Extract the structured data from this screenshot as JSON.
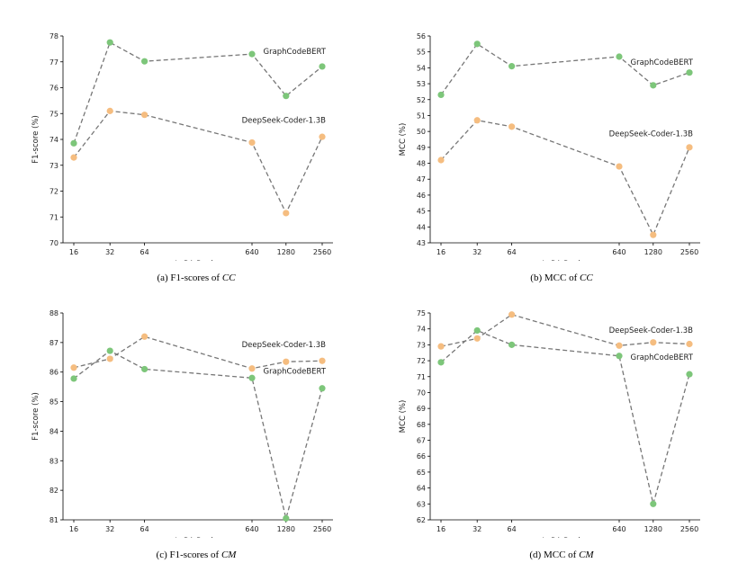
{
  "chart_data": [
    {
      "type": "line",
      "id": "a",
      "caption_prefix": "(a) F1-scores of ",
      "caption_em": "CC",
      "xlabel_prefix": "LoRA Rank ",
      "xlabel_em": "r",
      "ylabel": "F1-score (%)",
      "categories": [
        "16",
        "32",
        "64",
        "640",
        "1280",
        "2560"
      ],
      "ylim": [
        70,
        78
      ],
      "yticks": [
        "70",
        "71",
        "72",
        "73",
        "74",
        "75",
        "76",
        "77",
        "78"
      ],
      "series": [
        {
          "name": "GraphCodeBERT",
          "color": "#7dc67a",
          "values": [
            73.85,
            77.75,
            77.02,
            77.3,
            75.68,
            76.82
          ]
        },
        {
          "name": "DeepSeek-Coder-1.3B",
          "color": "#f5bd80",
          "values": [
            73.3,
            75.1,
            74.95,
            73.88,
            71.15,
            74.1
          ]
        }
      ],
      "annotations": [
        {
          "series": "GraphCodeBERT",
          "anchor_x": 5,
          "anchor_y": 77.3
        },
        {
          "series": "DeepSeek-Coder-1.3B",
          "anchor_x": 5,
          "anchor_y": 74.65
        }
      ]
    },
    {
      "type": "line",
      "id": "b",
      "caption_prefix": "(b) MCC of ",
      "caption_em": "CC",
      "xlabel_prefix": "LoRA Rank ",
      "xlabel_em": "r",
      "ylabel": "MCC (%)",
      "categories": [
        "16",
        "32",
        "64",
        "640",
        "1280",
        "2560"
      ],
      "ylim": [
        43,
        56
      ],
      "yticks": [
        "43",
        "44",
        "45",
        "46",
        "47",
        "48",
        "49",
        "50",
        "51",
        "52",
        "53",
        "54",
        "55",
        "56"
      ],
      "series": [
        {
          "name": "GraphCodeBERT",
          "color": "#7dc67a",
          "values": [
            52.3,
            55.5,
            54.1,
            54.7,
            52.9,
            53.7
          ]
        },
        {
          "name": "DeepSeek-Coder-1.3B",
          "color": "#f5bd80",
          "values": [
            48.2,
            50.7,
            50.3,
            47.8,
            43.5,
            49.0
          ]
        }
      ],
      "annotations": [
        {
          "series": "GraphCodeBERT",
          "anchor_x": 5,
          "anchor_y": 54.2
        },
        {
          "series": "DeepSeek-Coder-1.3B",
          "anchor_x": 5,
          "anchor_y": 49.7
        }
      ]
    },
    {
      "type": "line",
      "id": "c",
      "caption_prefix": "(c) F1-scores of ",
      "caption_em": "CM",
      "xlabel_prefix": "LoRA Rank ",
      "xlabel_em": "r",
      "ylabel": "F1-score (%)",
      "categories": [
        "16",
        "32",
        "64",
        "640",
        "1280",
        "2560"
      ],
      "ylim": [
        81,
        88
      ],
      "yticks": [
        "81",
        "82",
        "83",
        "84",
        "85",
        "86",
        "87",
        "88"
      ],
      "series": [
        {
          "name": "DeepSeek-Coder-1.3B",
          "color": "#f5bd80",
          "values": [
            86.15,
            86.45,
            87.2,
            86.12,
            86.35,
            86.38
          ]
        },
        {
          "name": "GraphCodeBERT",
          "color": "#7dc67a",
          "values": [
            85.78,
            86.72,
            86.1,
            85.8,
            81.05,
            85.45
          ]
        }
      ],
      "annotations": [
        {
          "series": "DeepSeek-Coder-1.3B",
          "anchor_x": 5,
          "anchor_y": 86.85
        },
        {
          "series": "GraphCodeBERT",
          "anchor_x": 5,
          "anchor_y": 85.95
        }
      ]
    },
    {
      "type": "line",
      "id": "d",
      "caption_prefix": "(d) MCC of ",
      "caption_em": "CM",
      "xlabel_prefix": "LoRA Rank ",
      "xlabel_em": "r",
      "ylabel": "MCC (%)",
      "categories": [
        "16",
        "32",
        "64",
        "640",
        "1280",
        "2560"
      ],
      "ylim": [
        62,
        75
      ],
      "yticks": [
        "62",
        "63",
        "64",
        "65",
        "66",
        "67",
        "68",
        "69",
        "70",
        "71",
        "72",
        "73",
        "74",
        "75"
      ],
      "series": [
        {
          "name": "DeepSeek-Coder-1.3B",
          "color": "#f5bd80",
          "values": [
            72.9,
            73.4,
            74.9,
            72.95,
            73.15,
            73.05
          ]
        },
        {
          "name": "GraphCodeBERT",
          "color": "#7dc67a",
          "values": [
            71.9,
            73.9,
            73.0,
            72.3,
            63.0,
            71.15
          ]
        }
      ],
      "annotations": [
        {
          "series": "DeepSeek-Coder-1.3B",
          "anchor_x": 5,
          "anchor_y": 73.75
        },
        {
          "series": "GraphCodeBERT",
          "anchor_x": 5,
          "anchor_y": 72.05
        }
      ]
    }
  ]
}
